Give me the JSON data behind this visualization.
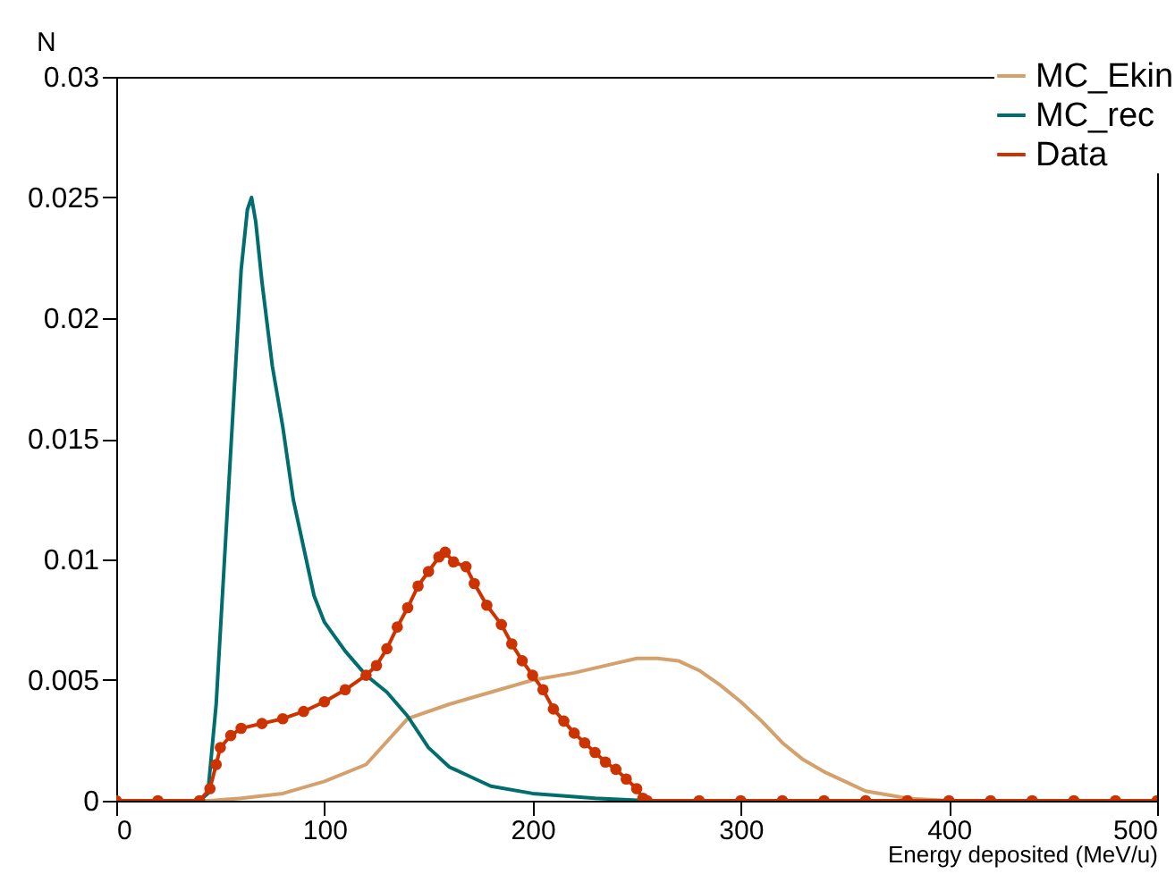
{
  "chart_data": {
    "type": "line",
    "xlabel": "Energy deposited (MeV/u)",
    "ylabel": "N",
    "xlim": [
      0,
      500
    ],
    "xticks": [
      0,
      100,
      200,
      300,
      400,
      500
    ],
    "ylim": [
      0,
      0.03
    ],
    "yticks": [
      0,
      0.005,
      0.01,
      0.015,
      0.02,
      0.025,
      0.03
    ],
    "legend": "top right",
    "grid": false,
    "series": [
      {
        "name": "MC_Ekin",
        "color": "#d4a06c",
        "x": [
          0,
          40,
          45,
          60,
          80,
          100,
          120,
          140,
          160,
          180,
          200,
          220,
          240,
          250,
          260,
          270,
          280,
          290,
          300,
          310,
          320,
          330,
          340,
          350,
          360,
          380,
          400,
          500
        ],
        "values": [
          0,
          0,
          0,
          0.0001,
          0.0003,
          0.0008,
          0.0015,
          0.0034,
          0.004,
          0.0045,
          0.005,
          0.0053,
          0.0057,
          0.0059,
          0.0059,
          0.0058,
          0.0054,
          0.0048,
          0.0041,
          0.0033,
          0.0024,
          0.0017,
          0.0012,
          0.0008,
          0.0004,
          0.0001,
          0,
          0
        ]
      },
      {
        "name": "MC_rec",
        "color": "#006e6e",
        "x": [
          0,
          40,
          44,
          48,
          52,
          56,
          60,
          63,
          65,
          67,
          70,
          75,
          80,
          85,
          90,
          95,
          100,
          110,
          120,
          130,
          140,
          150,
          160,
          170,
          180,
          200,
          230,
          255,
          500
        ],
        "values": [
          0,
          0,
          0.0003,
          0.004,
          0.01,
          0.016,
          0.022,
          0.0245,
          0.025,
          0.024,
          0.0215,
          0.018,
          0.0155,
          0.0125,
          0.0105,
          0.0085,
          0.0074,
          0.0062,
          0.0052,
          0.0045,
          0.0035,
          0.0022,
          0.0014,
          0.001,
          0.0006,
          0.0003,
          0.0001,
          0,
          0
        ]
      },
      {
        "name": "Data",
        "color": "#cc3300",
        "marker": "circle",
        "x": [
          0,
          20,
          40,
          45,
          48,
          50,
          55,
          60,
          70,
          80,
          90,
          100,
          110,
          120,
          125,
          130,
          135,
          140,
          145,
          150,
          155,
          158,
          162,
          168,
          172,
          178,
          185,
          190,
          195,
          200,
          205,
          210,
          215,
          220,
          225,
          230,
          235,
          240,
          245,
          250,
          253,
          255,
          280,
          300,
          320,
          340,
          360,
          380,
          400,
          420,
          440,
          460,
          480,
          500
        ],
        "values": [
          0,
          0,
          0,
          0.0005,
          0.0015,
          0.0022,
          0.0027,
          0.003,
          0.0032,
          0.0034,
          0.0037,
          0.0041,
          0.0046,
          0.0052,
          0.0056,
          0.0063,
          0.0072,
          0.008,
          0.0089,
          0.0095,
          0.0101,
          0.0103,
          0.0099,
          0.0097,
          0.009,
          0.0081,
          0.0073,
          0.0065,
          0.0058,
          0.0052,
          0.0046,
          0.0038,
          0.0033,
          0.0028,
          0.0024,
          0.002,
          0.0016,
          0.0013,
          0.0009,
          0.0005,
          0.0001,
          0,
          0,
          0,
          0,
          0,
          0,
          0,
          0,
          0,
          0,
          0,
          0,
          0
        ]
      }
    ]
  }
}
